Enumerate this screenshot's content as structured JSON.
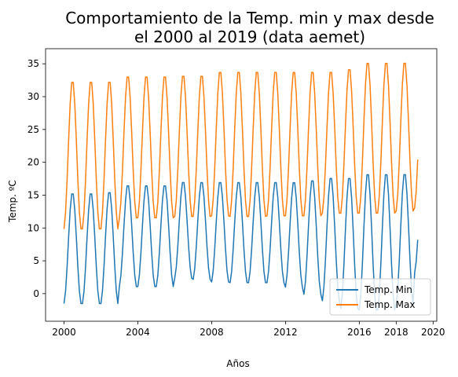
{
  "chart_data": {
    "type": "line",
    "title": [
      "Comportamiento de la Temp. min y max desde",
      "el 2000 al 2019 (data aemet)"
    ],
    "xlabel": "Años",
    "ylabel": "Temp. ºC",
    "xlim": [
      1999.0,
      2020.2
    ],
    "ylim": [
      -4.2,
      37.3
    ],
    "xticks": [
      2000,
      2004,
      2008,
      2012,
      2016,
      2018,
      2020
    ],
    "yticks": [
      0,
      5,
      10,
      15,
      20,
      25,
      30,
      35
    ],
    "legend_position": "lower-right",
    "series": [
      {
        "name": "Temp. Min",
        "color": "#1f77b4",
        "min_pattern": [
          -1.7,
          -1.7,
          -1.7,
          0.9,
          0.9,
          0.9,
          2.2,
          2.0,
          1.6,
          1.5,
          1.5,
          1.5,
          0.8,
          -0.3,
          -1.3,
          -2.5,
          -2.7,
          -2.7,
          -1.8,
          3.0
        ],
        "max_pattern": [
          15.5,
          15.5,
          15.7,
          16.7,
          16.7,
          16.7,
          17.2,
          17.2,
          17.2,
          17.2,
          17.2,
          17.2,
          17.2,
          17.5,
          17.9,
          17.9,
          18.5,
          18.5,
          18.5,
          18.5
        ]
      },
      {
        "name": "Temp. Max",
        "color": "#ff7f0e",
        "min_pattern": [
          9.6,
          9.6,
          9.6,
          11.3,
          11.3,
          11.3,
          11.5,
          11.5,
          11.6,
          11.5,
          11.5,
          11.6,
          11.6,
          11.6,
          12.0,
          12.0,
          12.0,
          12.0,
          12.3,
          12.8
        ],
        "max_pattern": [
          32.6,
          32.6,
          32.6,
          33.4,
          33.4,
          33.4,
          33.5,
          33.5,
          34.1,
          34.1,
          34.1,
          34.1,
          34.1,
          34.1,
          34.1,
          34.5,
          35.5,
          35.5,
          35.5,
          35.5
        ]
      }
    ],
    "x_start": 2000,
    "months_count": 231
  }
}
